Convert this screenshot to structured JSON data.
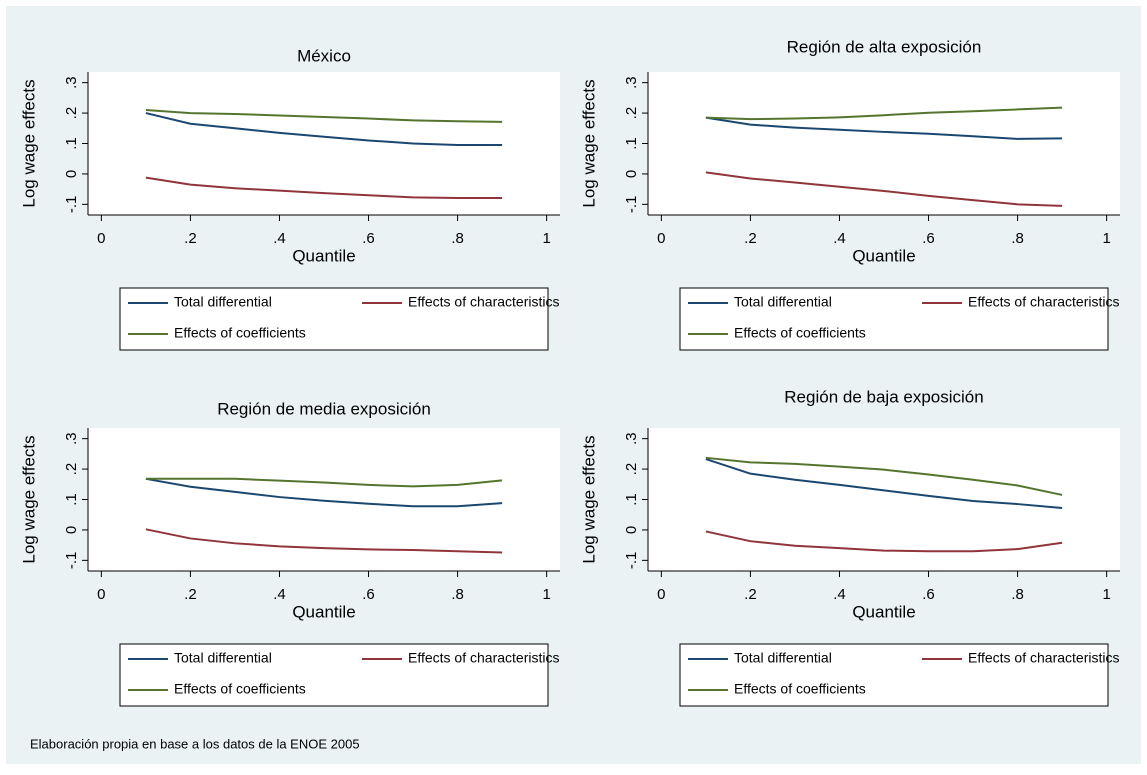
{
  "chart_data": [
    {
      "type": "line",
      "title": "México",
      "xlabel": "Quantile",
      "ylabel": "Log wage effects",
      "x": [
        0.1,
        0.2,
        0.3,
        0.4,
        0.5,
        0.6,
        0.7,
        0.8,
        0.9
      ],
      "xlim": [
        -0.03,
        1.03
      ],
      "ylim": [
        -0.135,
        0.335
      ],
      "xticks": [
        0,
        {
          "value": 0.2,
          "label": ".2"
        },
        {
          "value": 0.4,
          "label": ".4"
        },
        {
          "value": 0.6,
          "label": ".6"
        },
        {
          "value": 0.8,
          "label": ".8"
        },
        1
      ],
      "yticks": [
        {
          "value": -0.1,
          "label": "-.1"
        },
        0,
        {
          "value": 0.1,
          "label": ".1"
        },
        {
          "value": 0.2,
          "label": ".2"
        },
        {
          "value": 0.3,
          "label": ".3"
        }
      ],
      "series": [
        {
          "name": "Total differential",
          "color": "#1a476f",
          "values": [
            0.2,
            0.165,
            0.15,
            0.135,
            0.122,
            0.11,
            0.1,
            0.095,
            0.095
          ]
        },
        {
          "name": "Effects of characteristics",
          "color": "#90353b",
          "values": [
            -0.012,
            -0.035,
            -0.047,
            -0.055,
            -0.063,
            -0.07,
            -0.077,
            -0.079,
            -0.079
          ]
        },
        {
          "name": "Effects of coefficients",
          "color": "#55752f",
          "values": [
            0.21,
            0.2,
            0.197,
            0.192,
            0.187,
            0.182,
            0.176,
            0.173,
            0.171
          ]
        }
      ]
    },
    {
      "type": "line",
      "title": "Región de alta exposición",
      "xlabel": "Quantile",
      "ylabel": "Log wage effects",
      "x": [
        0.1,
        0.2,
        0.3,
        0.4,
        0.5,
        0.6,
        0.7,
        0.8,
        0.9
      ],
      "xlim": [
        -0.03,
        1.03
      ],
      "ylim": [
        -0.135,
        0.335
      ],
      "xticks": [
        0,
        {
          "value": 0.2,
          "label": ".2"
        },
        {
          "value": 0.4,
          "label": ".4"
        },
        {
          "value": 0.6,
          "label": ".6"
        },
        {
          "value": 0.8,
          "label": ".8"
        },
        1
      ],
      "yticks": [
        {
          "value": -0.1,
          "label": "-.1"
        },
        0,
        {
          "value": 0.1,
          "label": ".1"
        },
        {
          "value": 0.2,
          "label": ".2"
        },
        {
          "value": 0.3,
          "label": ".3"
        }
      ],
      "series": [
        {
          "name": "Total differential",
          "color": "#1a476f",
          "values": [
            0.185,
            0.162,
            0.152,
            0.145,
            0.138,
            0.132,
            0.124,
            0.115,
            0.117
          ]
        },
        {
          "name": "Effects of characteristics",
          "color": "#90353b",
          "values": [
            0.005,
            -0.015,
            -0.028,
            -0.042,
            -0.056,
            -0.072,
            -0.086,
            -0.1,
            -0.105
          ]
        },
        {
          "name": "Effects of coefficients",
          "color": "#55752f",
          "values": [
            0.185,
            0.18,
            0.182,
            0.186,
            0.193,
            0.201,
            0.206,
            0.212,
            0.218
          ]
        }
      ]
    },
    {
      "type": "line",
      "title": "Región de media exposición",
      "xlabel": "Quantile",
      "ylabel": "Log wage effects",
      "x": [
        0.1,
        0.2,
        0.3,
        0.4,
        0.5,
        0.6,
        0.7,
        0.8,
        0.9
      ],
      "xlim": [
        -0.03,
        1.03
      ],
      "ylim": [
        -0.135,
        0.335
      ],
      "xticks": [
        0,
        {
          "value": 0.2,
          "label": ".2"
        },
        {
          "value": 0.4,
          "label": ".4"
        },
        {
          "value": 0.6,
          "label": ".6"
        },
        {
          "value": 0.8,
          "label": ".8"
        },
        1
      ],
      "yticks": [
        {
          "value": -0.1,
          "label": "-.1"
        },
        0,
        {
          "value": 0.1,
          "label": ".1"
        },
        {
          "value": 0.2,
          "label": ".2"
        },
        {
          "value": 0.3,
          "label": ".3"
        }
      ],
      "series": [
        {
          "name": "Total differential",
          "color": "#1a476f",
          "values": [
            0.168,
            0.142,
            0.125,
            0.108,
            0.096,
            0.086,
            0.078,
            0.078,
            0.088
          ]
        },
        {
          "name": "Effects of characteristics",
          "color": "#90353b",
          "values": [
            0.002,
            -0.028,
            -0.044,
            -0.054,
            -0.06,
            -0.064,
            -0.066,
            -0.07,
            -0.074
          ]
        },
        {
          "name": "Effects of coefficients",
          "color": "#55752f",
          "values": [
            0.168,
            0.168,
            0.168,
            0.162,
            0.156,
            0.148,
            0.143,
            0.148,
            0.163
          ]
        }
      ]
    },
    {
      "type": "line",
      "title": "Región de baja  exposición",
      "xlabel": "Quantile",
      "ylabel": "Log wage effects",
      "x": [
        0.1,
        0.2,
        0.3,
        0.4,
        0.5,
        0.6,
        0.7,
        0.8,
        0.9
      ],
      "xlim": [
        -0.03,
        1.03
      ],
      "ylim": [
        -0.135,
        0.335
      ],
      "xticks": [
        0,
        {
          "value": 0.2,
          "label": ".2"
        },
        {
          "value": 0.4,
          "label": ".4"
        },
        {
          "value": 0.6,
          "label": ".6"
        },
        {
          "value": 0.8,
          "label": ".8"
        },
        1
      ],
      "yticks": [
        {
          "value": -0.1,
          "label": "-.1"
        },
        0,
        {
          "value": 0.1,
          "label": ".1"
        },
        {
          "value": 0.2,
          "label": ".2"
        },
        {
          "value": 0.3,
          "label": ".3"
        }
      ],
      "series": [
        {
          "name": "Total differential",
          "color": "#1a476f",
          "values": [
            0.233,
            0.185,
            0.165,
            0.148,
            0.13,
            0.112,
            0.095,
            0.085,
            0.072
          ]
        },
        {
          "name": "Effects of characteristics",
          "color": "#90353b",
          "values": [
            -0.005,
            -0.037,
            -0.052,
            -0.06,
            -0.068,
            -0.07,
            -0.07,
            -0.063,
            -0.042
          ]
        },
        {
          "name": "Effects of coefficients",
          "color": "#55752f",
          "values": [
            0.237,
            0.222,
            0.217,
            0.208,
            0.198,
            0.182,
            0.165,
            0.146,
            0.115
          ]
        }
      ]
    }
  ],
  "note": "Elaboración propia en base a los datos de la ENOE 2005"
}
